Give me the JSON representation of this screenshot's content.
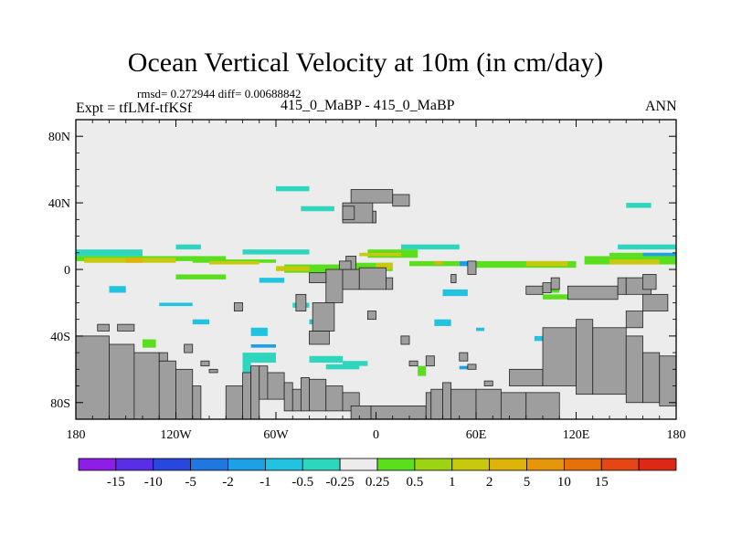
{
  "chart_data": {
    "type": "heatmap",
    "title": "Ocean Vertical Velocity at 10m (in cm/day)",
    "stats_text": "rmsd= 0.272944  diff= 0.00688842",
    "left_label": "Expt = tfLMf-tfKSf",
    "center_label": "415_0_MaBP - 415_0_MaBP",
    "right_label": "ANN",
    "x_axis": {
      "range": [
        -180,
        180
      ],
      "ticks": [
        {
          "value": -180,
          "label": "180"
        },
        {
          "value": -120,
          "label": "120W"
        },
        {
          "value": -60,
          "label": "60W"
        },
        {
          "value": 0,
          "label": "0"
        },
        {
          "value": 60,
          "label": "60E"
        },
        {
          "value": 120,
          "label": "120E"
        },
        {
          "value": 180,
          "label": "180"
        }
      ]
    },
    "y_axis": {
      "range": [
        -90,
        90
      ],
      "ticks": [
        {
          "value": 80,
          "label": "80N"
        },
        {
          "value": 40,
          "label": "40N"
        },
        {
          "value": 0,
          "label": "0"
        },
        {
          "value": -40,
          "label": "40S"
        },
        {
          "value": -80,
          "label": "80S"
        }
      ]
    },
    "colorbar": {
      "colors": [
        "#8c1ee6",
        "#5a2ee6",
        "#2847dc",
        "#1f78e0",
        "#1ea0e6",
        "#22c3e0",
        "#2fd6be",
        "#ececec",
        "#5ade1e",
        "#9cd414",
        "#c8c80c",
        "#dcb40a",
        "#e6960a",
        "#e6700a",
        "#e64614",
        "#dc2814"
      ],
      "labels": [
        "-15",
        "-10",
        "-5",
        "-2",
        "-1",
        "-0.5",
        "-0.25",
        "0.25",
        "0.5",
        "1",
        "2",
        "5",
        "10",
        "15"
      ]
    },
    "land_cells": [
      [
        -160,
        -40,
        -180,
        -90
      ],
      [
        -145,
        -45,
        -160,
        -90
      ],
      [
        -130,
        -50,
        -145,
        -90
      ],
      [
        -120,
        -55,
        -130,
        -90
      ],
      [
        -110,
        -60,
        -120,
        -90
      ],
      [
        -105,
        -70,
        -110,
        -90
      ],
      [
        -80,
        -70,
        -90,
        -90
      ],
      [
        -75,
        -62,
        -80,
        -90
      ],
      [
        -70,
        -58,
        -75,
        -90
      ],
      [
        -65,
        -58,
        -70,
        -78
      ],
      [
        -55,
        -62,
        -65,
        -78
      ],
      [
        -50,
        -68,
        -55,
        -85
      ],
      [
        -45,
        -72,
        -50,
        -85
      ],
      [
        -40,
        -65,
        -45,
        -85
      ],
      [
        -30,
        -66,
        -40,
        -85
      ],
      [
        -20,
        -70,
        -30,
        -85
      ],
      [
        -10,
        -74,
        -20,
        -85
      ],
      [
        -3,
        -82,
        -15,
        -90
      ],
      [
        30,
        -82,
        -3,
        -90
      ],
      [
        33,
        -74,
        30,
        -90
      ],
      [
        40,
        -72,
        33,
        -90
      ],
      [
        45,
        -68,
        40,
        -90
      ],
      [
        60,
        -72,
        45,
        -90
      ],
      [
        75,
        -72,
        60,
        -90
      ],
      [
        90,
        -74,
        75,
        -90
      ],
      [
        110,
        -74,
        90,
        -90
      ],
      [
        100,
        -60,
        80,
        -70
      ],
      [
        120,
        -35,
        100,
        -70
      ],
      [
        130,
        -30,
        120,
        -75
      ],
      [
        150,
        -35,
        130,
        -75
      ],
      [
        160,
        -40,
        150,
        -80
      ],
      [
        170,
        -50,
        160,
        -80
      ],
      [
        180,
        -52,
        170,
        -82
      ],
      [
        -28,
        -37,
        -40,
        -45
      ],
      [
        -25,
        -20,
        -38,
        -37
      ],
      [
        -20,
        0,
        -30,
        -20
      ],
      [
        -10,
        0,
        -20,
        -12
      ],
      [
        6,
        1,
        -10,
        -12
      ],
      [
        10,
        -5,
        6,
        -12
      ],
      [
        -12,
        8,
        -18,
        0
      ],
      [
        -15,
        5,
        -22,
        0
      ],
      [
        -30,
        -2,
        -40,
        -8
      ],
      [
        -42,
        -15,
        -48,
        -25
      ],
      [
        -2,
        40,
        -20,
        28
      ],
      [
        0,
        35,
        -2,
        28
      ],
      [
        10,
        48,
        -15,
        40
      ],
      [
        20,
        45,
        10,
        38
      ],
      [
        -13,
        38,
        -20,
        30
      ],
      [
        145,
        -10,
        115,
        -18
      ],
      [
        150,
        -5,
        145,
        -15
      ],
      [
        160,
        -25,
        150,
        -35
      ],
      [
        165,
        -5,
        150,
        -15
      ],
      [
        168,
        -3,
        160,
        -12
      ],
      [
        175,
        -15,
        160,
        -25
      ],
      [
        -160,
        -33,
        -167,
        -37
      ],
      [
        -145,
        -33,
        -155,
        -37
      ],
      [
        -125,
        -50,
        -130,
        -55
      ],
      [
        -110,
        -45,
        -115,
        -50
      ],
      [
        -95,
        -60,
        -100,
        -62
      ],
      [
        -100,
        -55,
        -105,
        -58
      ],
      [
        -80,
        -20,
        -85,
        -25
      ],
      [
        0,
        -25,
        -5,
        -30
      ],
      [
        20,
        -40,
        15,
        -45
      ],
      [
        25,
        -55,
        20,
        -58
      ],
      [
        35,
        -52,
        30,
        -58
      ],
      [
        55,
        -50,
        50,
        -55
      ],
      [
        60,
        -57,
        55,
        -60
      ],
      [
        70,
        -67,
        65,
        -70
      ],
      [
        100,
        -10,
        90,
        -15
      ],
      [
        105,
        -8,
        100,
        -14
      ],
      [
        110,
        -5,
        105,
        -12
      ],
      [
        48,
        -3,
        45,
        -8
      ],
      [
        60,
        5,
        55,
        -3
      ]
    ],
    "bands": [
      {
        "c": "#5ade1e",
        "r": [
          [
            -180,
            8,
            -90,
            5
          ],
          [
            -110,
            6,
            -60,
            4
          ],
          [
            -55,
            3,
            -20,
            -2
          ],
          [
            -20,
            4,
            10,
            -1
          ],
          [
            20,
            5,
            50,
            2
          ],
          [
            60,
            5,
            120,
            1
          ],
          [
            125,
            8,
            180,
            3
          ],
          [
            -5,
            12,
            25,
            7
          ],
          [
            90,
            -10,
            110,
            -14
          ],
          [
            100,
            -15,
            115,
            -18
          ],
          [
            -120,
            -3,
            -90,
            -6
          ],
          [
            140,
            8,
            175,
            10
          ],
          [
            25,
            -58,
            30,
            -64
          ],
          [
            -165,
            -45,
            -155,
            -48
          ],
          [
            -140,
            -42,
            -132,
            -47
          ]
        ]
      },
      {
        "c": "#c8c80c",
        "r": [
          [
            -175,
            7,
            -120,
            4
          ],
          [
            -100,
            5,
            -70,
            3
          ],
          [
            -10,
            10,
            15,
            8
          ],
          [
            140,
            6,
            170,
            3
          ],
          [
            -60,
            2,
            -40,
            -1
          ],
          [
            0,
            4,
            10,
            0
          ],
          [
            90,
            5,
            115,
            2
          ]
        ]
      },
      {
        "c": "#22c3e0",
        "r": [
          [
            -130,
            -20,
            -110,
            -22
          ],
          [
            -75,
            -35,
            -65,
            -40
          ],
          [
            -70,
            -5,
            -55,
            -8
          ],
          [
            -160,
            -10,
            -150,
            -14
          ],
          [
            -110,
            -30,
            -100,
            -33
          ],
          [
            35,
            -30,
            45,
            -34
          ],
          [
            40,
            -12,
            55,
            -16
          ],
          [
            -40,
            -30,
            -30,
            -33
          ],
          [
            95,
            -40,
            100,
            -43
          ],
          [
            60,
            -35,
            65,
            -37
          ]
        ]
      },
      {
        "c": "#2fd6be",
        "r": [
          [
            -180,
            12,
            -140,
            8
          ],
          [
            -80,
            12,
            -40,
            9
          ],
          [
            -120,
            15,
            -105,
            12
          ],
          [
            15,
            15,
            50,
            12
          ],
          [
            -80,
            -50,
            -60,
            -56
          ],
          [
            -40,
            -52,
            -20,
            -56
          ],
          [
            -20,
            -55,
            -5,
            -58
          ],
          [
            -80,
            -55,
            -75,
            -64
          ],
          [
            -30,
            -57,
            -10,
            -60
          ],
          [
            -60,
            50,
            -40,
            47
          ],
          [
            145,
            15,
            180,
            12
          ],
          [
            150,
            40,
            165,
            37
          ],
          [
            -45,
            38,
            -25,
            35
          ],
          [
            -50,
            -20,
            -40,
            -23
          ]
        ]
      },
      {
        "c": "#1ea0e6",
        "r": [
          [
            -150,
            -50,
            -135,
            -52
          ],
          [
            50,
            -58,
            55,
            -60
          ],
          [
            160,
            8,
            180,
            10
          ],
          [
            50,
            5,
            60,
            2
          ],
          [
            -75,
            -45,
            -60,
            -47
          ]
        ]
      },
      {
        "c": "#dcb40a",
        "r": [
          [
            -150,
            7,
            -140,
            4
          ],
          [
            -5,
            -3,
            0,
            -6
          ],
          [
            35,
            5,
            40,
            3
          ]
        ]
      }
    ]
  }
}
